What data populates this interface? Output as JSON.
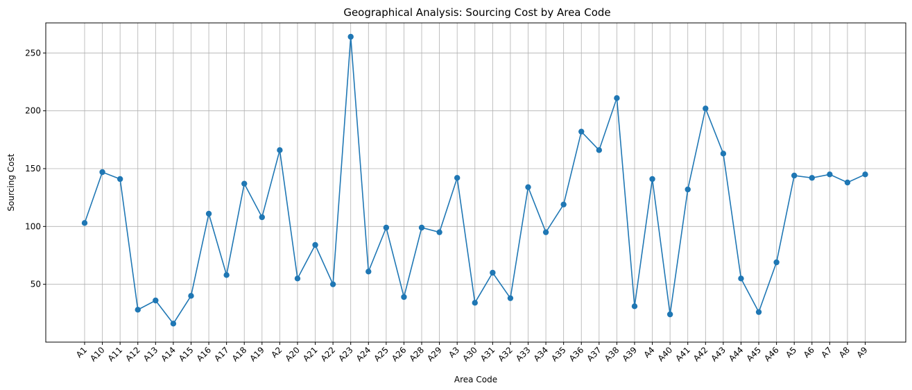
{
  "chart_data": {
    "type": "line",
    "title": "Geographical Analysis: Sourcing Cost by Area Code",
    "xlabel": "Area Code",
    "ylabel": "Sourcing Cost",
    "grid": true,
    "ylim": [
      0,
      276
    ],
    "yticks": [
      50,
      100,
      150,
      200,
      250
    ],
    "color": "#1f77b4",
    "categories": [
      "A1",
      "A10",
      "A11",
      "A12",
      "A13",
      "A14",
      "A15",
      "A16",
      "A17",
      "A18",
      "A19",
      "A2",
      "A20",
      "A21",
      "A22",
      "A23",
      "A24",
      "A25",
      "A26",
      "A28",
      "A29",
      "A3",
      "A30",
      "A31",
      "A32",
      "A33",
      "A34",
      "A35",
      "A36",
      "A37",
      "A38",
      "A39",
      "A4",
      "A40",
      "A41",
      "A42",
      "A43",
      "A44",
      "A45",
      "A46",
      "A5",
      "A6",
      "A7",
      "A8",
      "A9"
    ],
    "series": [
      {
        "values": [
          103,
          147,
          141,
          28,
          36,
          16,
          40,
          111,
          58,
          137,
          108,
          166,
          55,
          84,
          50,
          264,
          61,
          99,
          39,
          99,
          95,
          142,
          34,
          60,
          38,
          134,
          95,
          119,
          182,
          166,
          211,
          31,
          141,
          24,
          132,
          202,
          163,
          55,
          26,
          69,
          144,
          142,
          145,
          138,
          145
        ]
      }
    ]
  }
}
